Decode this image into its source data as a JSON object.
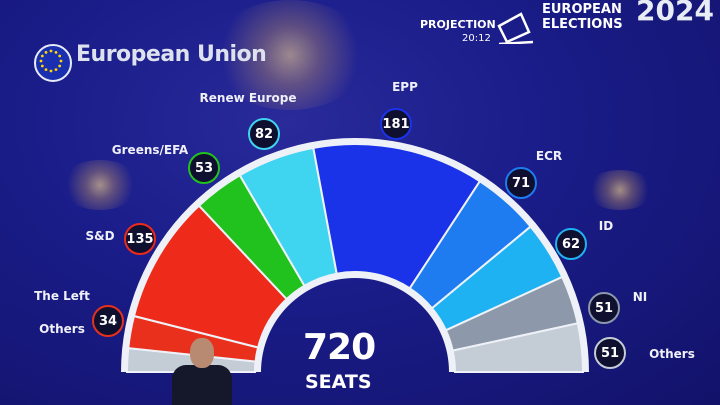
{
  "header": {
    "org": "European Union",
    "projection_label": "PROJECTION",
    "projection_time": "20:12",
    "event_line1": "EUROPEAN",
    "event_line2": "ELECTIONS",
    "year": "2024",
    "icon": "ballot-box-icon",
    "flag_icon": "eu-flag-icon"
  },
  "chart_data": {
    "type": "hemicycle",
    "total": {
      "value": "720",
      "label": "SEATS"
    },
    "unlabeled_left_label": "Others",
    "series": [
      {
        "name": "The Left",
        "value": 34,
        "color": "#e8301c"
      },
      {
        "name": "S&D",
        "value": 135,
        "color": "#ee2a1a"
      },
      {
        "name": "Greens/EFA",
        "value": 53,
        "color": "#22c21e"
      },
      {
        "name": "Renew Europe",
        "value": 82,
        "color": "#3fd4f0"
      },
      {
        "name": "EPP",
        "value": 181,
        "color": "#1a33e8"
      },
      {
        "name": "ECR",
        "value": 71,
        "color": "#1e7cf0"
      },
      {
        "name": "ID",
        "value": 62,
        "color": "#1fb2f2"
      },
      {
        "name": "NI",
        "value": 51,
        "color": "#8d98aa"
      },
      {
        "name": "Others",
        "value": 51,
        "color": "#c4ccd6"
      }
    ]
  }
}
